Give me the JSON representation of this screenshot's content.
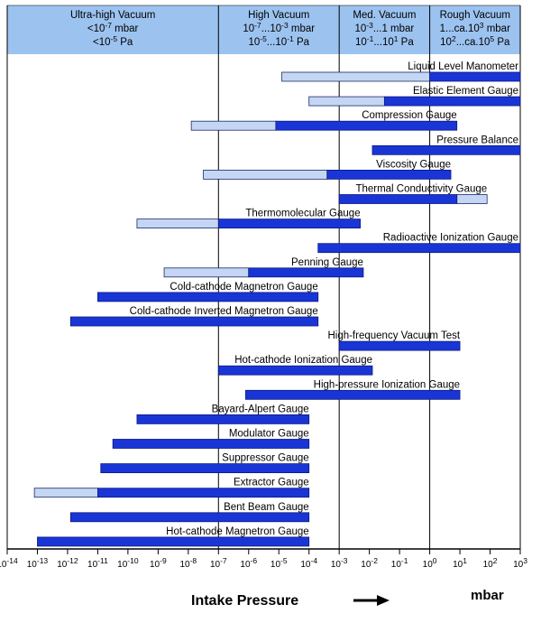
{
  "chart_data": {
    "type": "range-bar",
    "title": "",
    "xlabel": "Intake Pressure",
    "unit": "mbar",
    "x_scale": "log10",
    "x_range": [
      -14,
      3
    ],
    "tick_labels": [
      "10-14",
      "10-13",
      "10-12",
      "10-11",
      "10-10",
      "10-9",
      "10-8",
      "10-7",
      "10-6",
      "10-5",
      "10-4",
      "10-3",
      "10-2",
      "10-1",
      "100",
      "101",
      "102",
      "103"
    ],
    "colors": {
      "header_bg": "#9cc3f0",
      "dark_bar": "#1a35d6",
      "light_bar": "#c4d6f3",
      "divider": "#000000"
    },
    "regions": [
      {
        "name": "Ultra-high Vacuum",
        "line1": "<10-7 mbar",
        "line2": "<10-5 Pa",
        "from": -14,
        "to": -7
      },
      {
        "name": "High Vacuum",
        "line1": "10-7...10-3 mbar",
        "line2": "10-5...10-1 Pa",
        "from": -7,
        "to": -3
      },
      {
        "name": "Med. Vacuum",
        "line1": "10-3...1 mbar",
        "line2": "10-1...101 Pa",
        "from": -3,
        "to": 0
      },
      {
        "name": "Rough Vacuum",
        "line1": "1...ca.103 mbar",
        "line2": "102...ca.105 Pa",
        "from": 0,
        "to": 3
      }
    ],
    "gauges": [
      {
        "name": "Liquid Level Manometer",
        "light": [
          -4.9,
          0
        ],
        "dark": [
          0,
          3
        ]
      },
      {
        "name": "Elastic Element Gauge",
        "light": [
          -4,
          -1.5
        ],
        "dark": [
          -1.5,
          3
        ]
      },
      {
        "name": "Compression Gauge",
        "light": [
          -7.9,
          -5.1
        ],
        "dark": [
          -5.1,
          0.9
        ]
      },
      {
        "name": "Pressure Balance",
        "light": null,
        "dark": [
          -1.9,
          3
        ]
      },
      {
        "name": "Viscosity Gauge",
        "light": [
          -7.5,
          -3.4
        ],
        "dark": [
          -3.4,
          0.7
        ]
      },
      {
        "name": "Thermal Conductivity Gauge",
        "light": [
          0.9,
          1.9
        ],
        "dark": [
          -3,
          0.9
        ]
      },
      {
        "name": "Thermomolecular Gauge",
        "light": [
          -9.7,
          -7
        ],
        "dark": [
          -7,
          -2.3
        ]
      },
      {
        "name": "Radioactive Ionization Gauge",
        "light": null,
        "dark": [
          -3.7,
          3
        ]
      },
      {
        "name": "Penning Gauge",
        "light": [
          -8.8,
          -6
        ],
        "dark": [
          -6,
          -2.2
        ]
      },
      {
        "name": "Cold-cathode Magnetron Gauge",
        "light": null,
        "dark": [
          -11,
          -3.7
        ]
      },
      {
        "name": "Cold-cathode Inverted Magnetron Gauge",
        "light": null,
        "dark": [
          -11.9,
          -3.7
        ]
      },
      {
        "name": "High-frequency Vacuum Test",
        "light": null,
        "dark": [
          -3,
          1
        ]
      },
      {
        "name": "Hot-cathode Ionization Gauge",
        "light": null,
        "dark": [
          -7,
          -1.9
        ]
      },
      {
        "name": "High-pressure Ionization Gauge",
        "light": null,
        "dark": [
          -6.1,
          1
        ]
      },
      {
        "name": "Bayard-Alpert Gauge",
        "light": null,
        "dark": [
          -9.7,
          -4
        ]
      },
      {
        "name": "Modulator Gauge",
        "light": null,
        "dark": [
          -10.5,
          -4
        ]
      },
      {
        "name": "Suppressor Gauge",
        "light": null,
        "dark": [
          -10.9,
          -4
        ]
      },
      {
        "name": "Extractor Gauge",
        "light": [
          -13.1,
          -11
        ],
        "dark": [
          -11,
          -4
        ]
      },
      {
        "name": "Bent Beam Gauge",
        "light": null,
        "dark": [
          -11.9,
          -4
        ]
      },
      {
        "name": "Hot-cathode Magnetron Gauge",
        "light": null,
        "dark": [
          -13,
          -4
        ]
      }
    ]
  }
}
